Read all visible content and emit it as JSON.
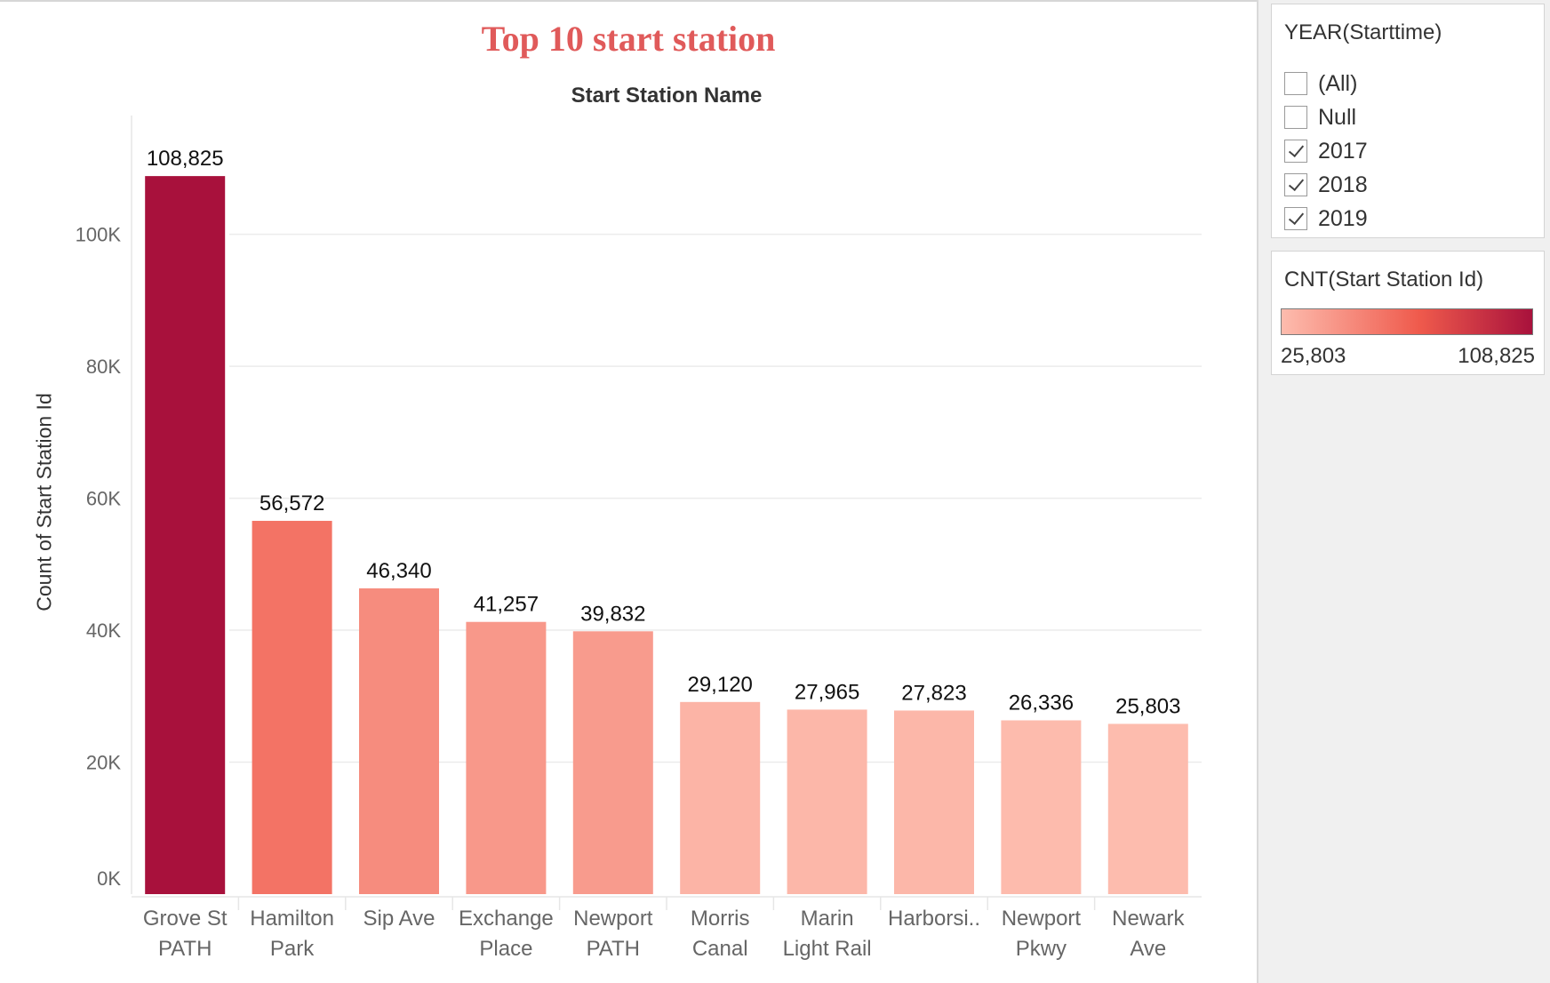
{
  "chart_data": {
    "type": "bar",
    "title": "Top 10 start station",
    "x_header": "Start Station Name",
    "ylabel": "Count of Start Station Id",
    "ylim": [
      0,
      118000
    ],
    "yticks": [
      0,
      20000,
      40000,
      60000,
      80000,
      100000
    ],
    "ytick_labels": [
      "0K",
      "20K",
      "40K",
      "60K",
      "80K",
      "100K"
    ],
    "grid": true,
    "categories": [
      [
        "Grove St",
        "PATH"
      ],
      [
        "Hamilton",
        "Park"
      ],
      [
        "Sip Ave"
      ],
      [
        "Exchange",
        "Place"
      ],
      [
        "Newport",
        "PATH"
      ],
      [
        "Morris",
        "Canal"
      ],
      [
        "Marin",
        "Light Rail"
      ],
      [
        "Harborsi.."
      ],
      [
        "Newport",
        "Pkwy"
      ],
      [
        "Newark",
        "Ave"
      ]
    ],
    "values": [
      108825,
      56572,
      46340,
      41257,
      39832,
      29120,
      27965,
      27823,
      26336,
      25803
    ],
    "value_labels": [
      "108,825",
      "56,572",
      "46,340",
      "41,257",
      "39,832",
      "29,120",
      "27,965",
      "27,823",
      "26,336",
      "25,803"
    ],
    "color_scale": {
      "low": "#fdbcae",
      "mid": "#ef5a4c",
      "high": "#a8113c"
    }
  },
  "colors": {
    "title": "#e05a5a"
  },
  "filter": {
    "title": "YEAR(Starttime)",
    "options": [
      {
        "label": "(All)",
        "checked": false
      },
      {
        "label": "Null",
        "checked": false
      },
      {
        "label": "2017",
        "checked": true
      },
      {
        "label": "2018",
        "checked": true
      },
      {
        "label": "2019",
        "checked": true
      }
    ]
  },
  "legend": {
    "title": "CNT(Start Station Id)",
    "min_label": "25,803",
    "max_label": "108,825"
  }
}
